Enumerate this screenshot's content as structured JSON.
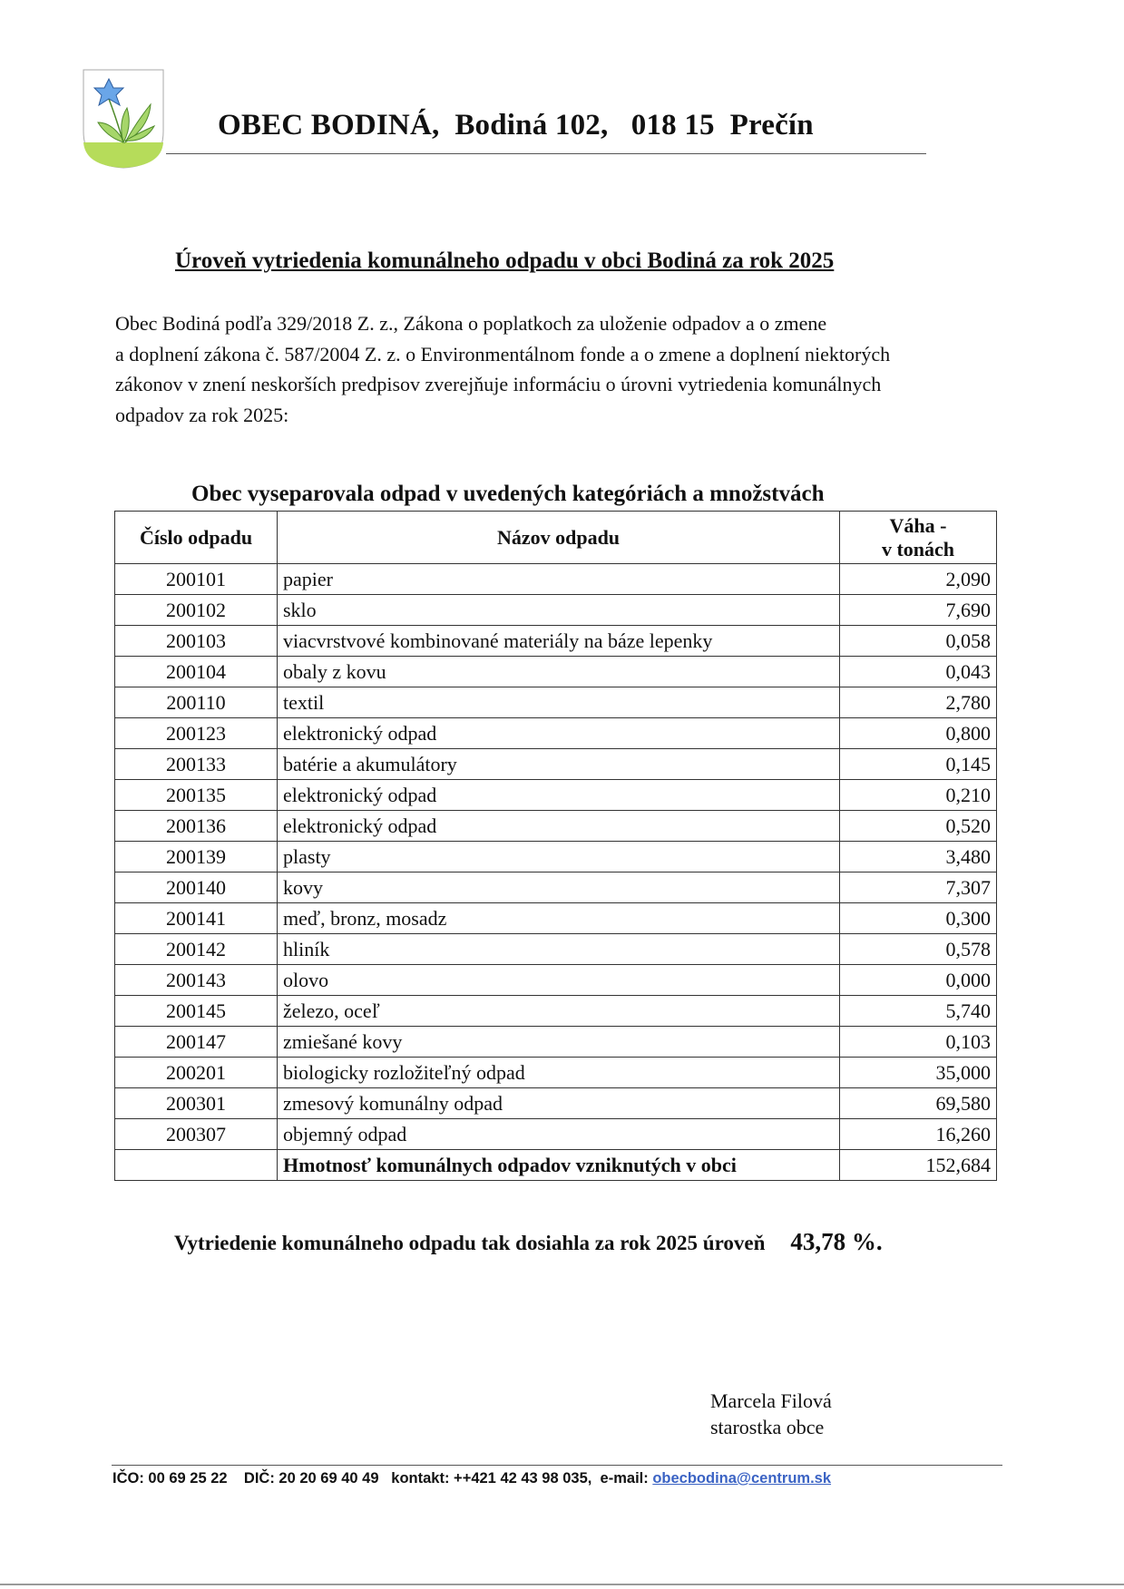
{
  "header": {
    "title": "OBEC BODINÁ,  Bodiná 102,   018 15  Prečín",
    "logo": "coat-of-arms-blue-flower"
  },
  "document": {
    "title": "Úroveň vytriedenia komunálneho odpadu v obci Bodiná za rok 2025",
    "intro_lines": [
      "Obec Bodiná podľa 329/2018 Z. z., Zákona o poplatkoch za uloženie odpadov a o zmene",
      "a doplnení zákona č. 587/2004 Z. z. o Environmentálnom fonde a o zmene a doplnení niektorých",
      "zákonov v znení neskorších predpisov zverejňuje informáciu o úrovni vytriedenia komunálnych",
      "odpadov za rok 2025:"
    ],
    "table_caption": "Obec vyseparovala odpad v uvedených kategóriách a množstvách"
  },
  "table": {
    "headers": [
      "Číslo odpadu",
      "Názov odpadu",
      "Váha -",
      "v tonách"
    ],
    "rows": [
      {
        "code": "200101",
        "name": "papier",
        "weight": "2,090"
      },
      {
        "code": "200102",
        "name": "sklo",
        "weight": "7,690"
      },
      {
        "code": "200103",
        "name": "viacvrstvové kombinované materiály na báze lepenky",
        "weight": "0,058"
      },
      {
        "code": "200104",
        "name": "obaly z kovu",
        "weight": "0,043"
      },
      {
        "code": "200110",
        "name": "textil",
        "weight": "2,780"
      },
      {
        "code": "200123",
        "name": "elektronický odpad",
        "weight": "0,800"
      },
      {
        "code": "200133",
        "name": "batérie a akumulátory",
        "weight": "0,145"
      },
      {
        "code": "200135",
        "name": "elektronický odpad",
        "weight": "0,210"
      },
      {
        "code": "200136",
        "name": "elektronický odpad",
        "weight": "0,520"
      },
      {
        "code": "200139",
        "name": "plasty",
        "weight": "3,480"
      },
      {
        "code": "200140",
        "name": "kovy",
        "weight": "7,307"
      },
      {
        "code": "200141",
        "name": "meď, bronz, mosadz",
        "weight": "0,300"
      },
      {
        "code": "200142",
        "name": "hliník",
        "weight": "0,578"
      },
      {
        "code": "200143",
        "name": "olovo",
        "weight": "0,000"
      },
      {
        "code": "200145",
        "name": "železo, oceľ",
        "weight": "5,740"
      },
      {
        "code": "200147",
        "name": "zmiešané kovy",
        "weight": "0,103"
      },
      {
        "code": "200201",
        "name": "biologicky rozložiteľný odpad",
        "weight": "35,000"
      },
      {
        "code": "200301",
        "name": "zmesový komunálny odpad",
        "weight": "69,580"
      },
      {
        "code": "200307",
        "name": "objemný odpad",
        "weight": "16,260"
      }
    ],
    "total": {
      "code": "",
      "name": "Hmotnosť komunálnych odpadov vzniknutých v obci",
      "weight": "152,684"
    }
  },
  "result": {
    "text": "Vytriedenie komunálneho odpadu tak dosiahla za rok 2025 úroveň",
    "percent": "43,78 %."
  },
  "signature": {
    "name": "Marcela Filová",
    "role": "starostka obce"
  },
  "footer": {
    "ico": "IČO: 00 69 25 22",
    "dic": "DIČ: 20 20 69 40 49",
    "contact": "kontakt: ++421 42 43 98 035,",
    "email_label": "e-mail:",
    "email": "obecbodina@centrum.sk",
    "link_color": "#3b63c4"
  }
}
